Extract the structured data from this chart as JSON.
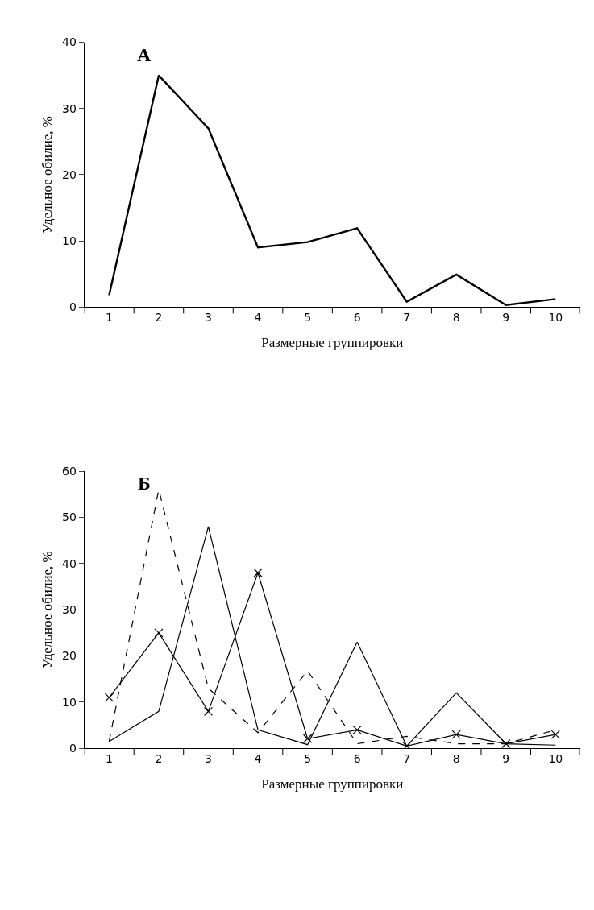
{
  "chart_data": [
    {
      "type": "line",
      "title": "А",
      "xlabel": "Размерные группировки",
      "ylabel": "Удельное обилие, %",
      "categories": [
        "1",
        "2",
        "3",
        "4",
        "5",
        "6",
        "7",
        "8",
        "9",
        "10"
      ],
      "series": [
        {
          "color": "#000000",
          "values": [
            1.8,
            35,
            27,
            9,
            9.8,
            11.9,
            0.8,
            4.9,
            0.3,
            1.2
          ],
          "line_style": "solid",
          "marker": "none"
        }
      ],
      "ylim": [
        0,
        40
      ],
      "yticks": [
        0,
        10,
        20,
        30,
        40
      ]
    },
    {
      "type": "line",
      "title": "Б",
      "xlabel": "Размерные группировки",
      "ylabel": "Удельное обилие, %",
      "categories": [
        "1",
        "2",
        "3",
        "4",
        "5",
        "6",
        "7",
        "8",
        "9",
        "10"
      ],
      "series": [
        {
          "color": "#000000",
          "values": [
            1.5,
            56,
            13,
            3.4,
            16.8,
            1,
            2.6,
            1,
            1,
            4
          ],
          "line_style": "dashed",
          "marker": "none"
        },
        {
          "color": "#000000",
          "values": [
            1.5,
            8,
            48,
            4,
            0.8,
            23,
            0.5,
            12,
            1,
            0.7
          ],
          "line_style": "solid",
          "marker": "none"
        },
        {
          "color": "#000000",
          "values": [
            11,
            25,
            8,
            38,
            2.1,
            4,
            0.5,
            3,
            1,
            3
          ],
          "line_style": "solid",
          "marker": "cross"
        }
      ],
      "ylim": [
        0,
        60
      ],
      "yticks": [
        0,
        10,
        20,
        30,
        40,
        50,
        60
      ]
    }
  ]
}
